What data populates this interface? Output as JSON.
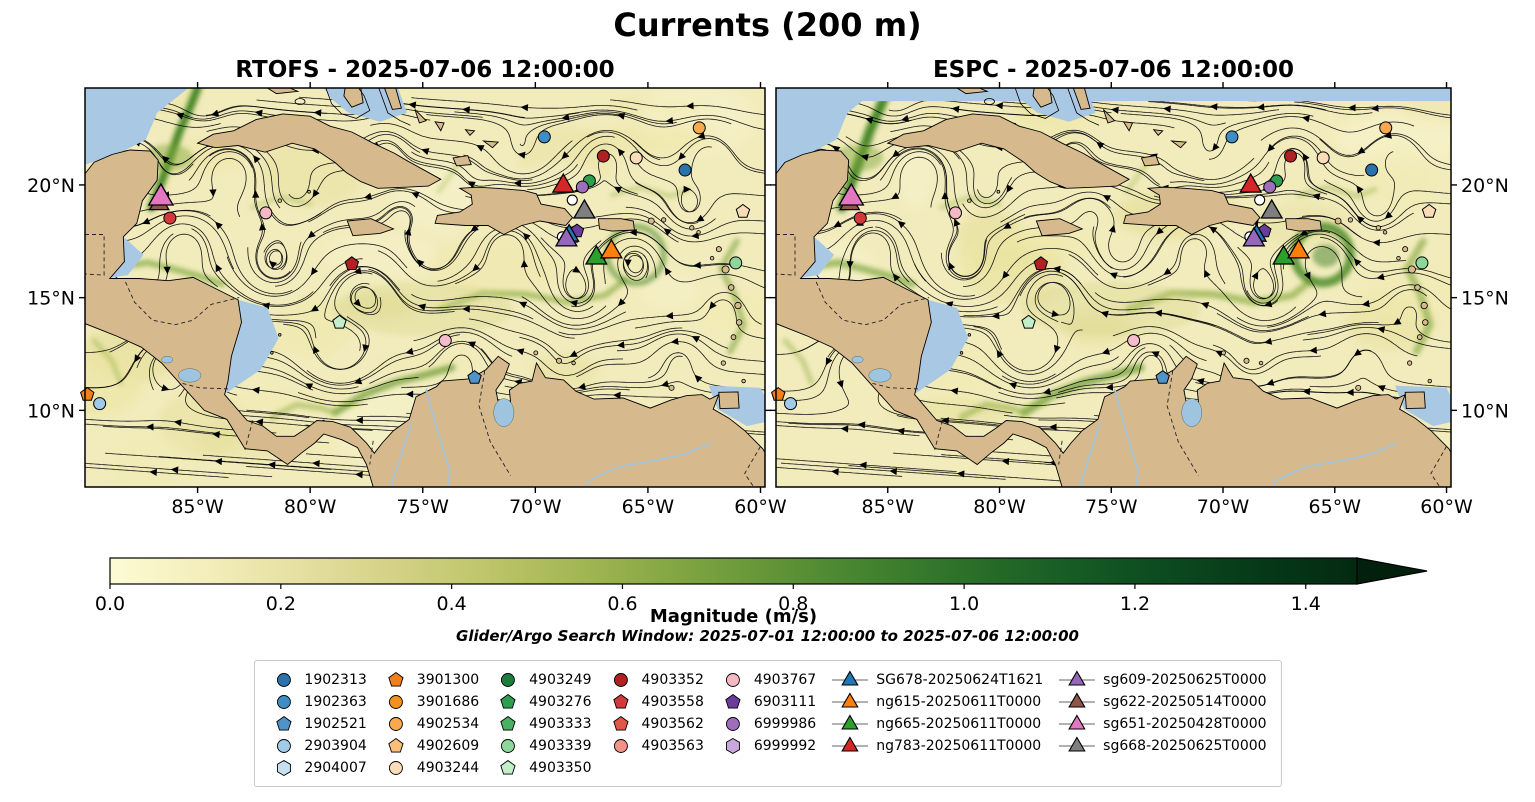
{
  "title": "Currents (200 m)",
  "panels": [
    {
      "id": "rtofs",
      "title": "RTOFS - 2025-07-06 12:00:00"
    },
    {
      "id": "espc",
      "title": "ESPC - 2025-07-06 12:00:00"
    }
  ],
  "axes": {
    "lon_ticks": [
      {
        "deg": -85,
        "label": "85°W"
      },
      {
        "deg": -80,
        "label": "80°W"
      },
      {
        "deg": -75,
        "label": "75°W"
      },
      {
        "deg": -70,
        "label": "70°W"
      },
      {
        "deg": -65,
        "label": "65°W"
      },
      {
        "deg": -60,
        "label": "60°W"
      }
    ],
    "lat_ticks": [
      {
        "deg": 20,
        "label": "20°N"
      },
      {
        "deg": 15,
        "label": "15°N"
      },
      {
        "deg": 10,
        "label": "10°N"
      }
    ]
  },
  "colorbar": {
    "label": "Magnitude (m/s)",
    "tick_values": [
      0.0,
      0.2,
      0.4,
      0.6,
      0.8,
      1.0,
      1.2,
      1.4
    ],
    "tick_labels": [
      "0.0",
      "0.2",
      "0.4",
      "0.6",
      "0.8",
      "1.0",
      "1.2",
      "1.4"
    ],
    "vmax_bar": 1.46,
    "colors": [
      "#fdfbd4",
      "#f3eebb",
      "#e5dfa0",
      "#d3d184",
      "#bcc468",
      "#9fb552",
      "#7fa441",
      "#5f9336",
      "#41812e",
      "#2a6e29",
      "#175c25",
      "#0c4a1f",
      "#063918",
      "#032a11"
    ],
    "extend_color": "#02200c"
  },
  "annotations": {
    "search_window": "Glider/Argo Search Window: 2025-07-01 12:00:00 to 2025-07-06 12:00:00"
  },
  "legend": {
    "argo": [
      {
        "label": "1902313",
        "shape": "circle",
        "color": "#2b72ab"
      },
      {
        "label": "1902363",
        "shape": "circle",
        "color": "#3f8dc4"
      },
      {
        "label": "1902521",
        "shape": "pentagon",
        "color": "#4f93c8"
      },
      {
        "label": "2903904",
        "shape": "circle",
        "color": "#9fcbe8"
      },
      {
        "label": "2904007",
        "shape": "hexagon",
        "color": "#c6e0f0"
      },
      {
        "label": "3901300",
        "shape": "pentagon",
        "color": "#f07f1c"
      },
      {
        "label": "3901686",
        "shape": "circle",
        "color": "#f2911f"
      },
      {
        "label": "4902534",
        "shape": "circle",
        "color": "#f8a94f"
      },
      {
        "label": "4902609",
        "shape": "pentagon",
        "color": "#f9bf79"
      },
      {
        "label": "4903244",
        "shape": "circle",
        "color": "#fbdcb8"
      },
      {
        "label": "4903249",
        "shape": "circle",
        "color": "#1d7d3f"
      },
      {
        "label": "4903276",
        "shape": "pentagon",
        "color": "#2f9e4f"
      },
      {
        "label": "4903333",
        "shape": "pentagon",
        "color": "#4ab164"
      },
      {
        "label": "4903339",
        "shape": "circle",
        "color": "#8ed79a"
      },
      {
        "label": "4903350",
        "shape": "pentagon",
        "color": "#c2eec9"
      },
      {
        "label": "4903352",
        "shape": "circle",
        "color": "#b02121"
      },
      {
        "label": "4903558",
        "shape": "pentagon",
        "color": "#d03a3a"
      },
      {
        "label": "4903562",
        "shape": "pentagon",
        "color": "#e25549"
      },
      {
        "label": "4903563",
        "shape": "circle",
        "color": "#f2948a"
      },
      {
        "label": "4903767",
        "shape": "circle",
        "color": "#f4b8c4"
      },
      {
        "label": "6903111",
        "shape": "pentagon",
        "color": "#6a3d9a"
      },
      {
        "label": "6999986",
        "shape": "circle",
        "color": "#9e6ebd"
      },
      {
        "label": "6999992",
        "shape": "hexagon",
        "color": "#c9a8dd"
      }
    ],
    "gliders": [
      {
        "label": "SG678-20250624T1621",
        "shape": "triangle",
        "color": "#1f77b4"
      },
      {
        "label": "ng615-20250611T0000",
        "shape": "triangle",
        "color": "#ff7f0e"
      },
      {
        "label": "ng665-20250611T0000",
        "shape": "triangle",
        "color": "#2ca02c"
      },
      {
        "label": "ng783-20250611T0000",
        "shape": "triangle",
        "color": "#d62728"
      },
      {
        "label": "sg609-20250625T0000",
        "shape": "triangle",
        "color": "#9467bd"
      },
      {
        "label": "sg622-20250514T0000",
        "shape": "triangle",
        "color": "#8c564b"
      },
      {
        "label": "sg651-20250428T0000",
        "shape": "triangle",
        "color": "#e377c2"
      },
      {
        "label": "sg668-20250625T0000",
        "shape": "triangle",
        "color": "#7f7f7f"
      }
    ]
  },
  "chart_data": {
    "type": "map-streamplot",
    "variable": "Ocean current magnitude and streamlines at 200 m depth",
    "subplots": [
      "RTOFS - 2025-07-06 12:00:00",
      "ESPC - 2025-07-06 12:00:00"
    ],
    "colorbar_label": "Magnitude (m/s)",
    "colorbar_ticks": [
      0.0,
      0.2,
      0.4,
      0.6,
      0.8,
      1.0,
      1.2,
      1.4
    ],
    "colorbar_range": [
      0,
      1.5
    ],
    "map_extent": {
      "lon_min": -90.0,
      "lon_max": -59.8,
      "lat_min": 6.6,
      "lat_max": 24.3
    },
    "lon_ticks_deg": [
      -85,
      -80,
      -75,
      -70,
      -65,
      -60
    ],
    "lat_ticks_deg": [
      10,
      15,
      20
    ],
    "argo_floats": [
      {
        "lon": -69.6,
        "lat": 22.13,
        "shape": "circle",
        "color": "#3f8dc4"
      },
      {
        "lon": -62.72,
        "lat": 22.53,
        "shape": "circle",
        "color": "#f8a94f"
      },
      {
        "lon": -66.98,
        "lat": 21.28,
        "shape": "circle",
        "color": "#b02121"
      },
      {
        "lon": -65.52,
        "lat": 21.2,
        "shape": "circle",
        "color": "#fbdcb8"
      },
      {
        "lon": -67.6,
        "lat": 20.18,
        "shape": "circle",
        "color": "#2f9e4f"
      },
      {
        "lon": -67.91,
        "lat": 19.91,
        "shape": "circle",
        "color": "#9e6ebd"
      },
      {
        "lon": -63.35,
        "lat": 20.66,
        "shape": "circle",
        "color": "#2b72ab"
      },
      {
        "lon": -81.97,
        "lat": 18.76,
        "shape": "circle",
        "color": "#f4b8c4"
      },
      {
        "lon": -86.23,
        "lat": 18.53,
        "shape": "circle",
        "color": "#d03a3a"
      },
      {
        "lon": -78.15,
        "lat": 16.5,
        "shape": "pentagon",
        "color": "#b02121"
      },
      {
        "lon": -61.1,
        "lat": 16.54,
        "shape": "circle",
        "color": "#8ed79a"
      },
      {
        "lon": -78.7,
        "lat": 13.9,
        "shape": "pentagon",
        "color": "#c2eec9"
      },
      {
        "lon": -74.0,
        "lat": 13.1,
        "shape": "circle",
        "color": "#f6bccb"
      },
      {
        "lon": -72.7,
        "lat": 11.45,
        "shape": "pentagon",
        "color": "#4f93c8"
      },
      {
        "lon": -89.9,
        "lat": 10.7,
        "shape": "pentagon",
        "color": "#f07f1c"
      },
      {
        "lon": -89.35,
        "lat": 10.3,
        "shape": "circle",
        "color": "#9fcbe8"
      },
      {
        "lon": -60.78,
        "lat": 18.82,
        "shape": "pentagon",
        "color": "#fbdcb8"
      },
      {
        "lon": -68.15,
        "lat": 17.95,
        "shape": "pentagon",
        "color": "#6a3d9a"
      }
    ],
    "white_markers": [
      {
        "lon": -68.36,
        "lat": 19.33
      },
      {
        "lon": -68.8,
        "lat": 17.7
      }
    ],
    "gliders": [
      {
        "id": "SG678",
        "lon": -68.5,
        "lat": 17.75,
        "color": "#1f77b4",
        "size": 11
      },
      {
        "id": "sg622",
        "lon": -86.7,
        "lat": 19.15,
        "color": "#8c564b",
        "size": 11
      },
      {
        "id": "sg651",
        "lon": -86.63,
        "lat": 19.42,
        "color": "#e377c2",
        "size": 14
      },
      {
        "id": "sg609",
        "lon": -68.62,
        "lat": 17.56,
        "color": "#9467bd",
        "size": 12
      },
      {
        "id": "sg668",
        "lon": -67.82,
        "lat": 18.8,
        "color": "#7f7f7f",
        "size": 12
      },
      {
        "id": "ng783",
        "lon": -68.76,
        "lat": 19.95,
        "color": "#d62728",
        "size": 12
      },
      {
        "id": "ng665",
        "lon": -67.29,
        "lat": 16.76,
        "color": "#2ca02c",
        "size": 12
      },
      {
        "id": "ng615",
        "lon": -66.62,
        "lat": 17.03,
        "color": "#ff7f0e",
        "size": 12
      }
    ]
  }
}
